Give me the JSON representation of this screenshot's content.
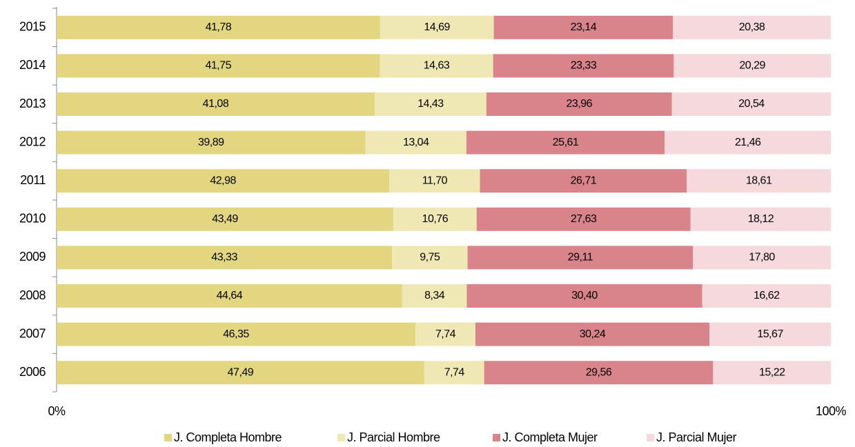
{
  "chart_data": {
    "type": "bar",
    "orientation": "horizontal",
    "stacked": true,
    "categories": [
      "2015",
      "2014",
      "2013",
      "2012",
      "2011",
      "2010",
      "2009",
      "2008",
      "2007",
      "2006"
    ],
    "series": [
      {
        "name": "J. Completa Hombre",
        "color": "#e2d680",
        "values": [
          41.78,
          41.75,
          41.08,
          39.89,
          42.98,
          43.49,
          43.33,
          44.64,
          46.35,
          47.49
        ],
        "value_labels": [
          "41,78",
          "41,75",
          "41,08",
          "39,89",
          "42,98",
          "43,49",
          "43,33",
          "44,64",
          "46,35",
          "47,49"
        ]
      },
      {
        "name": "J. Parcial Hombre",
        "color": "#efe8b4",
        "values": [
          14.69,
          14.63,
          14.43,
          13.04,
          11.7,
          10.76,
          9.75,
          8.34,
          7.74,
          7.74
        ],
        "value_labels": [
          "14,69",
          "14,63",
          "14,43",
          "13,04",
          "11,70",
          "10,76",
          "9,75",
          "8,34",
          "7,74",
          "7,74"
        ]
      },
      {
        "name": "J. Completa Mujer",
        "color": "#d9838b",
        "values": [
          23.14,
          23.33,
          23.96,
          25.61,
          26.71,
          27.63,
          29.11,
          30.4,
          30.24,
          29.56
        ],
        "value_labels": [
          "23,14",
          "23,33",
          "23,96",
          "25,61",
          "26,71",
          "27,63",
          "29,11",
          "30,40",
          "30,24",
          "29,56"
        ]
      },
      {
        "name": "J. Parcial Mujer",
        "color": "#f5d9dc",
        "values": [
          20.38,
          20.29,
          20.54,
          21.46,
          18.61,
          18.12,
          17.8,
          16.62,
          15.67,
          15.22
        ],
        "value_labels": [
          "20,38",
          "20,29",
          "20,54",
          "21,46",
          "18,61",
          "18,12",
          "17,80",
          "16,62",
          "15,67",
          "15,22"
        ]
      }
    ],
    "xlim": [
      0,
      100
    ],
    "xticks": [
      {
        "value": 0,
        "label": "0%"
      },
      {
        "value": 100,
        "label": "100%"
      }
    ],
    "legend": "bottom"
  }
}
